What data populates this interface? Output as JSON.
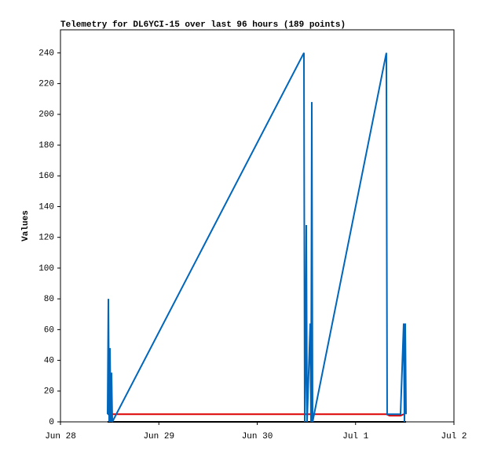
{
  "chart_data": {
    "type": "line",
    "title": "Telemetry for DL6YCI-15 over last 96 hours (189 points)",
    "y_label": "Values",
    "xlim": [
      0,
      4
    ],
    "ylim": [
      0,
      255
    ],
    "xticks": [
      {
        "value": 0,
        "label": "Jun 28"
      },
      {
        "value": 1,
        "label": "Jun 29"
      },
      {
        "value": 2,
        "label": "Jun 30"
      },
      {
        "value": 3,
        "label": "Jul 1"
      },
      {
        "value": 4,
        "label": "Jul 2"
      }
    ],
    "yticks": [
      0,
      20,
      40,
      60,
      80,
      100,
      120,
      140,
      160,
      180,
      200,
      220,
      240
    ],
    "series": [
      {
        "color": "#000000",
        "x": [
          0.479,
          3.513
        ],
        "values": [
          0,
          0
        ]
      },
      {
        "color": "#dd0000",
        "x": [
          0.479,
          3.313,
          3.345,
          3.457,
          3.489
        ],
        "values": [
          5,
          5,
          4,
          4,
          5
        ]
      },
      {
        "color": "#0066bb",
        "x": [
          0.479,
          0.487,
          0.495,
          0.503,
          0.511,
          0.519,
          0.527,
          2.475,
          2.483,
          2.491,
          2.499,
          2.507,
          2.539,
          2.547,
          2.555,
          2.563,
          3.313,
          3.321,
          3.457,
          3.489,
          3.497,
          3.505,
          3.513
        ],
        "values": [
          5,
          80,
          0,
          48,
          0,
          32,
          0,
          240,
          0,
          32,
          128,
          0,
          64,
          0,
          208,
          0,
          240,
          5,
          5,
          64,
          0,
          64,
          5
        ]
      }
    ]
  }
}
